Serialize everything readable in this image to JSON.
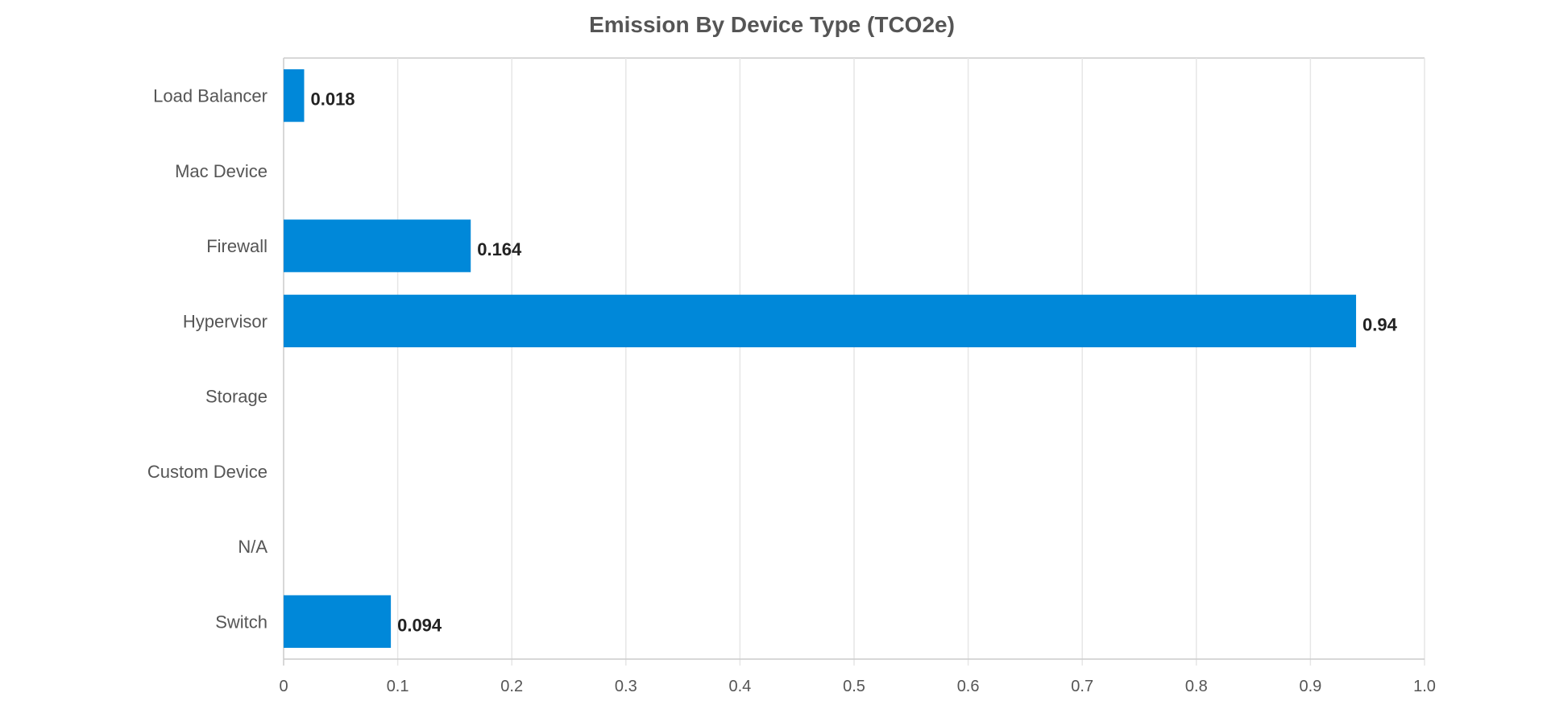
{
  "chart_data": {
    "type": "bar",
    "orientation": "horizontal",
    "title": "Emission By Device Type (TCO2e)",
    "xlabel": "",
    "ylabel": "",
    "categories": [
      "Load Balancer",
      "Mac Device",
      "Firewall",
      "Hypervisor",
      "Storage",
      "Custom Device",
      "N/A",
      "Switch"
    ],
    "values": [
      0.018,
      0,
      0.164,
      0.94,
      0,
      0,
      0,
      0.094
    ],
    "data_labels": [
      "0.018",
      "",
      "0.164",
      "0.94",
      "",
      "",
      "",
      "0.094"
    ],
    "xlim": [
      0,
      1.0
    ],
    "xticks": [
      0,
      0.1,
      0.2,
      0.3,
      0.4,
      0.5,
      0.6,
      0.7,
      0.8,
      0.9,
      1.0
    ],
    "xtick_labels": [
      "0",
      "0.1",
      "0.2",
      "0.3",
      "0.4",
      "0.5",
      "0.6",
      "0.7",
      "0.8",
      "0.9",
      "1.0"
    ],
    "grid": true,
    "legend": "none",
    "bar_color": "#0088d9"
  }
}
